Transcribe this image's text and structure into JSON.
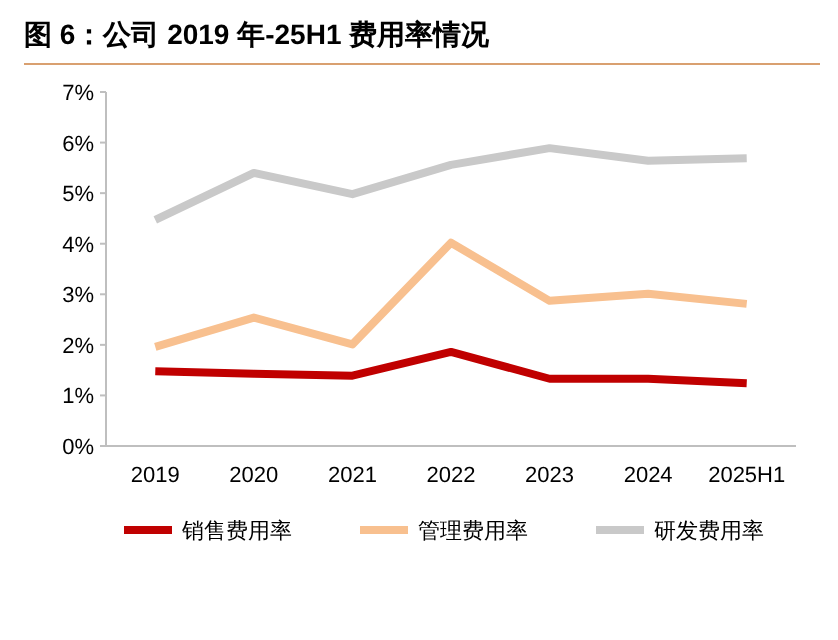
{
  "chart_data": {
    "type": "line",
    "title": "图 6：公司 2019 年-25H1 费用率情况",
    "categories": [
      "2019",
      "2020",
      "2021",
      "2022",
      "2023",
      "2024",
      "2025H1"
    ],
    "series": [
      {
        "name": "销售费用率",
        "color": "#c00000",
        "values": [
          1.48,
          1.43,
          1.39,
          1.86,
          1.33,
          1.33,
          1.24
        ]
      },
      {
        "name": "管理费用率",
        "color": "#f8c08f",
        "values": [
          1.96,
          2.54,
          2.01,
          4.02,
          2.87,
          3.01,
          2.81
        ]
      },
      {
        "name": "研发费用率",
        "color": "#c9c9c9",
        "values": [
          4.47,
          5.4,
          4.98,
          5.56,
          5.89,
          5.64,
          5.69
        ]
      }
    ],
    "ylim": [
      0,
      7
    ],
    "yticks": [
      {
        "value": 0,
        "label": "0%"
      },
      {
        "value": 1,
        "label": "1%"
      },
      {
        "value": 2,
        "label": "2%"
      },
      {
        "value": 3,
        "label": "3%"
      },
      {
        "value": 4,
        "label": "4%"
      },
      {
        "value": 5,
        "label": "5%"
      },
      {
        "value": 6,
        "label": "6%"
      },
      {
        "value": 7,
        "label": "7%"
      }
    ],
    "legend": "bottom"
  }
}
